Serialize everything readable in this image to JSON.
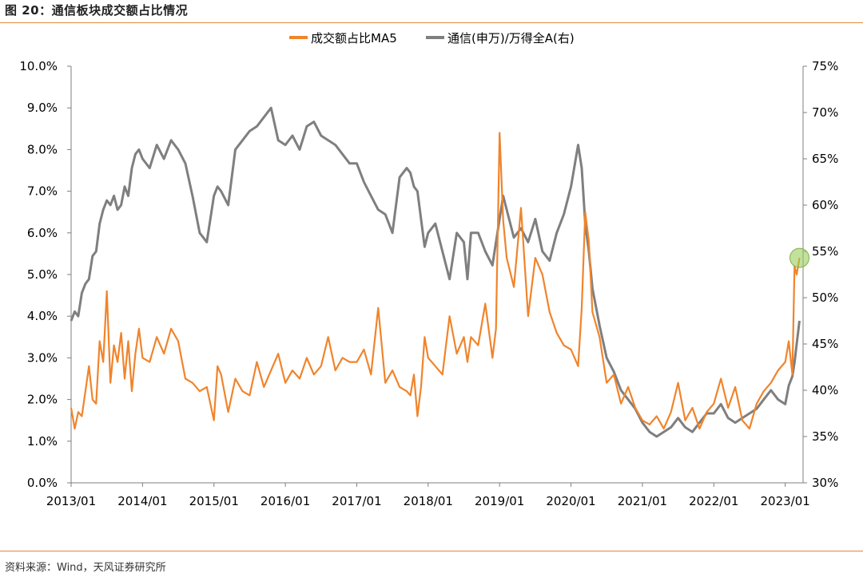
{
  "figure_title": "图 20：通信板块成交额占比情况",
  "source": "资料来源：Wind，天风证券研究所",
  "colors": {
    "series1": "#f0842c",
    "series2": "#7f7f7f",
    "rule": "#e08a3a",
    "marker": "#9acd5a"
  },
  "chart_data": {
    "type": "line",
    "title": "",
    "xlabel": "",
    "ylabel": "",
    "x_ticks": [
      "2013/01",
      "2014/01",
      "2015/01",
      "2016/01",
      "2017/01",
      "2018/01",
      "2019/01",
      "2020/01",
      "2021/01",
      "2022/01",
      "2023/01"
    ],
    "y_left_ticks": [
      "0.0%",
      "1.0%",
      "2.0%",
      "3.0%",
      "4.0%",
      "5.0%",
      "6.0%",
      "7.0%",
      "8.0%",
      "9.0%",
      "10.0%"
    ],
    "y_right_ticks": [
      "30%",
      "35%",
      "40%",
      "45%",
      "50%",
      "55%",
      "60%",
      "65%",
      "70%",
      "75%"
    ],
    "ylim_left": [
      0,
      10
    ],
    "ylim_right": [
      30,
      75
    ],
    "xlim": [
      2013.0,
      2023.25
    ],
    "legend_position": "top-center",
    "grid": false,
    "annotation": "circle marker on latest value",
    "series": [
      {
        "name": "成交额占比MA5",
        "axis": "left",
        "unit": "%",
        "x": [
          2013.0,
          2013.05,
          2013.1,
          2013.15,
          2013.2,
          2013.25,
          2013.3,
          2013.35,
          2013.4,
          2013.45,
          2013.5,
          2013.55,
          2013.6,
          2013.65,
          2013.7,
          2013.75,
          2013.8,
          2013.85,
          2013.9,
          2013.95,
          2014.0,
          2014.1,
          2014.2,
          2014.3,
          2014.4,
          2014.5,
          2014.6,
          2014.7,
          2014.8,
          2014.9,
          2015.0,
          2015.05,
          2015.1,
          2015.2,
          2015.3,
          2015.4,
          2015.5,
          2015.6,
          2015.7,
          2015.8,
          2015.9,
          2016.0,
          2016.1,
          2016.2,
          2016.3,
          2016.4,
          2016.5,
          2016.6,
          2016.7,
          2016.8,
          2016.9,
          2017.0,
          2017.1,
          2017.2,
          2017.3,
          2017.4,
          2017.5,
          2017.6,
          2017.7,
          2017.75,
          2017.8,
          2017.85,
          2017.9,
          2017.95,
          2018.0,
          2018.1,
          2018.2,
          2018.3,
          2018.4,
          2018.5,
          2018.55,
          2018.6,
          2018.7,
          2018.8,
          2018.9,
          2018.95,
          2019.0,
          2019.05,
          2019.1,
          2019.2,
          2019.3,
          2019.4,
          2019.5,
          2019.6,
          2019.7,
          2019.8,
          2019.9,
          2020.0,
          2020.1,
          2020.15,
          2020.2,
          2020.25,
          2020.3,
          2020.4,
          2020.5,
          2020.6,
          2020.7,
          2020.8,
          2020.9,
          2021.0,
          2021.1,
          2021.2,
          2021.3,
          2021.4,
          2021.5,
          2021.6,
          2021.7,
          2021.8,
          2021.9,
          2022.0,
          2022.1,
          2022.2,
          2022.3,
          2022.4,
          2022.5,
          2022.6,
          2022.7,
          2022.8,
          2022.9,
          2023.0,
          2023.05,
          2023.1,
          2023.13,
          2023.16,
          2023.2
        ],
        "values": [
          1.8,
          1.3,
          1.7,
          1.6,
          2.2,
          2.8,
          2.0,
          1.9,
          3.4,
          2.9,
          4.6,
          2.4,
          3.3,
          2.9,
          3.6,
          2.5,
          3.4,
          2.2,
          3.1,
          3.7,
          3.0,
          2.9,
          3.5,
          3.1,
          3.7,
          3.4,
          2.5,
          2.4,
          2.2,
          2.3,
          1.5,
          2.8,
          2.6,
          1.7,
          2.5,
          2.2,
          2.1,
          2.9,
          2.3,
          2.7,
          3.1,
          2.4,
          2.7,
          2.5,
          3.0,
          2.6,
          2.8,
          3.5,
          2.7,
          3.0,
          2.9,
          2.9,
          3.2,
          2.6,
          4.2,
          2.4,
          2.7,
          2.3,
          2.2,
          2.1,
          2.6,
          1.6,
          2.3,
          3.5,
          3.0,
          2.8,
          2.6,
          4.0,
          3.1,
          3.5,
          2.9,
          3.5,
          3.3,
          4.3,
          3.0,
          3.7,
          8.4,
          6.3,
          5.4,
          4.7,
          6.6,
          4.0,
          5.4,
          5.0,
          4.1,
          3.6,
          3.3,
          3.2,
          2.8,
          4.2,
          6.5,
          5.8,
          4.1,
          3.5,
          2.4,
          2.6,
          1.9,
          2.3,
          1.8,
          1.5,
          1.4,
          1.6,
          1.3,
          1.7,
          2.4,
          1.5,
          1.8,
          1.3,
          1.7,
          1.9,
          2.5,
          1.8,
          2.3,
          1.5,
          1.3,
          1.9,
          2.2,
          2.4,
          2.7,
          2.9,
          3.4,
          2.6,
          5.2,
          5.0,
          5.4
        ]
      },
      {
        "name": "通信(申万)/万得全A(右)",
        "axis": "right",
        "unit": "%",
        "x": [
          2013.0,
          2013.05,
          2013.1,
          2013.15,
          2013.2,
          2013.25,
          2013.3,
          2013.35,
          2013.4,
          2013.45,
          2013.5,
          2013.55,
          2013.6,
          2013.65,
          2013.7,
          2013.75,
          2013.8,
          2013.85,
          2013.9,
          2013.95,
          2014.0,
          2014.1,
          2014.2,
          2014.3,
          2014.4,
          2014.5,
          2014.6,
          2014.7,
          2014.8,
          2014.9,
          2015.0,
          2015.05,
          2015.1,
          2015.2,
          2015.3,
          2015.4,
          2015.5,
          2015.6,
          2015.7,
          2015.8,
          2015.9,
          2016.0,
          2016.1,
          2016.2,
          2016.3,
          2016.4,
          2016.5,
          2016.6,
          2016.7,
          2016.8,
          2016.9,
          2017.0,
          2017.1,
          2017.2,
          2017.3,
          2017.4,
          2017.5,
          2017.6,
          2017.7,
          2017.75,
          2017.8,
          2017.85,
          2017.9,
          2017.95,
          2018.0,
          2018.1,
          2018.2,
          2018.3,
          2018.4,
          2018.5,
          2018.55,
          2018.6,
          2018.7,
          2018.8,
          2018.9,
          2018.95,
          2019.0,
          2019.05,
          2019.1,
          2019.2,
          2019.3,
          2019.4,
          2019.5,
          2019.6,
          2019.7,
          2019.8,
          2019.9,
          2020.0,
          2020.1,
          2020.15,
          2020.2,
          2020.25,
          2020.3,
          2020.4,
          2020.5,
          2020.6,
          2020.7,
          2020.8,
          2020.9,
          2021.0,
          2021.1,
          2021.2,
          2021.3,
          2021.4,
          2021.5,
          2021.6,
          2021.7,
          2021.8,
          2021.9,
          2022.0,
          2022.1,
          2022.2,
          2022.3,
          2022.4,
          2022.5,
          2022.6,
          2022.7,
          2022.8,
          2022.9,
          2023.0,
          2023.05,
          2023.1,
          2023.13,
          2023.16,
          2023.2
        ],
        "values": [
          47.5,
          48.5,
          48.0,
          50.5,
          51.5,
          52.0,
          54.5,
          55.0,
          58.0,
          59.5,
          60.5,
          60.0,
          61.0,
          59.5,
          60.0,
          62.0,
          61.0,
          64.0,
          65.5,
          66.0,
          65.0,
          64.0,
          66.5,
          65.0,
          67.0,
          66.0,
          64.5,
          61.0,
          57.0,
          56.0,
          61.0,
          62.0,
          61.5,
          60.0,
          66.0,
          67.0,
          68.0,
          68.5,
          69.5,
          70.5,
          67.0,
          66.5,
          67.5,
          66.0,
          68.5,
          69.0,
          67.5,
          67.0,
          66.5,
          65.5,
          64.5,
          64.5,
          62.5,
          61.0,
          59.5,
          59.0,
          57.0,
          63.0,
          64.0,
          63.5,
          62.0,
          61.5,
          58.5,
          55.5,
          57.0,
          58.0,
          55.0,
          52.0,
          57.0,
          56.0,
          52.0,
          57.0,
          57.0,
          55.0,
          53.5,
          56.0,
          58.5,
          61.0,
          59.5,
          56.5,
          57.5,
          56.0,
          58.5,
          55.0,
          54.0,
          57.0,
          59.0,
          62.0,
          66.5,
          64.0,
          58.0,
          55.0,
          51.0,
          47.0,
          43.5,
          42.0,
          40.0,
          39.0,
          38.0,
          36.5,
          35.5,
          35.0,
          35.5,
          36.0,
          37.0,
          36.0,
          35.5,
          36.5,
          37.5,
          37.5,
          38.5,
          37.0,
          36.5,
          37.0,
          37.5,
          38.0,
          39.0,
          40.0,
          39.0,
          38.5,
          40.5,
          41.5,
          43.0,
          45.0,
          47.5
        ]
      }
    ]
  }
}
